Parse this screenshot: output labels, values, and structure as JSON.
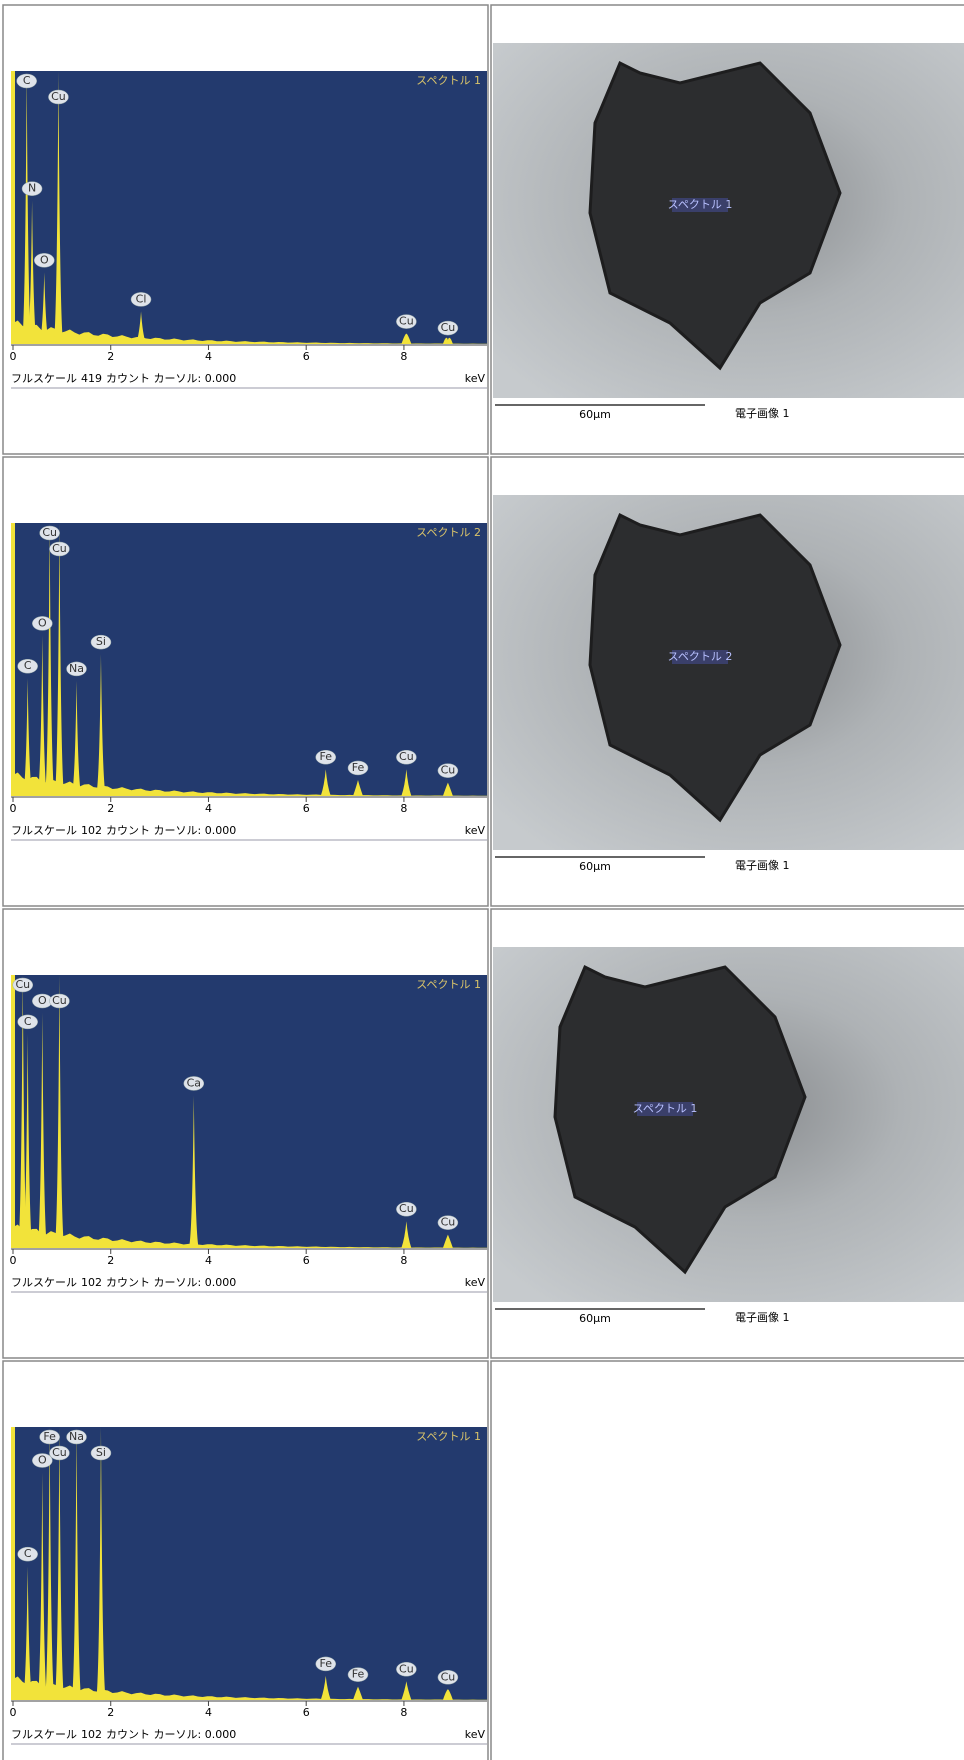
{
  "rows": [
    {
      "spectrum": {
        "tag": "スペクトル 1",
        "footer_prefix": "フルスケール",
        "full_scale": 419,
        "footer_suffix": "カウント カーソル: 0.000",
        "unit": "keV",
        "xlim": [
          0,
          9.7
        ],
        "xticks": [
          0,
          2,
          4,
          6,
          8
        ],
        "peaks": [
          {
            "label": "C",
            "x": 0.28,
            "y": 419
          },
          {
            "label": "N",
            "x": 0.39,
            "y": 220
          },
          {
            "label": "O",
            "x": 0.64,
            "y": 110
          },
          {
            "label": "Cu",
            "x": 0.93,
            "y": 419
          },
          {
            "label": "Cl",
            "x": 2.62,
            "y": 50
          },
          {
            "label": "Cu",
            "x": 8.05,
            "y": 16
          },
          {
            "label": "Cu",
            "x": 8.9,
            "y": 6
          }
        ]
      },
      "image": {
        "tag": "スペクトル 1",
        "scale": "60μm",
        "caption": "電子画像 1"
      }
    },
    {
      "spectrum": {
        "tag": "スペクトル 2",
        "footer_prefix": "フルスケール",
        "full_scale": 102,
        "footer_suffix": "カウント カーソル: 0.000",
        "unit": "keV",
        "xlim": [
          0,
          9.7
        ],
        "xticks": [
          0,
          2,
          4,
          6,
          8
        ],
        "peaks": [
          {
            "label": "C",
            "x": 0.3,
            "y": 44
          },
          {
            "label": "O",
            "x": 0.6,
            "y": 60
          },
          {
            "label": "Cu",
            "x": 0.75,
            "y": 102
          },
          {
            "label": "Cu",
            "x": 0.95,
            "y": 102
          },
          {
            "label": "Na",
            "x": 1.3,
            "y": 43
          },
          {
            "label": "Si",
            "x": 1.8,
            "y": 53
          },
          {
            "label": "Fe",
            "x": 6.4,
            "y": 10
          },
          {
            "label": "Fe",
            "x": 7.06,
            "y": 6
          },
          {
            "label": "Cu",
            "x": 8.05,
            "y": 10
          },
          {
            "label": "Cu",
            "x": 8.9,
            "y": 5
          }
        ]
      },
      "image": {
        "tag": "スペクトル 2",
        "scale": "60μm",
        "caption": "電子画像 1"
      }
    },
    {
      "spectrum": {
        "tag": "スペクトル 1",
        "footer_prefix": "フルスケール",
        "full_scale": 102,
        "footer_suffix": "カウント カーソル: 0.000",
        "unit": "keV",
        "xlim": [
          0,
          9.7
        ],
        "xticks": [
          0,
          2,
          4,
          6,
          8
        ],
        "peaks": [
          {
            "label": "C",
            "x": 0.3,
            "y": 80
          },
          {
            "label": "O",
            "x": 0.6,
            "y": 88
          },
          {
            "label": "Cu",
            "x": 0.2,
            "y": 102
          },
          {
            "label": "Cu",
            "x": 0.95,
            "y": 102
          },
          {
            "label": "Ca",
            "x": 3.7,
            "y": 57
          },
          {
            "label": "Cu",
            "x": 8.05,
            "y": 10
          },
          {
            "label": "Cu",
            "x": 8.9,
            "y": 5
          }
        ]
      },
      "image": {
        "tag": "スペクトル 1",
        "scale": "60μm",
        "caption": "電子画像 1"
      }
    },
    {
      "spectrum": {
        "tag": "スペクトル 1",
        "footer_prefix": "フルスケール",
        "full_scale": 102,
        "footer_suffix": "カウント カーソル: 0.000",
        "unit": "keV",
        "xlim": [
          0,
          9.7
        ],
        "xticks": [
          0,
          2,
          4,
          6,
          8
        ],
        "peaks": [
          {
            "label": "C",
            "x": 0.3,
            "y": 50
          },
          {
            "label": "O",
            "x": 0.6,
            "y": 85
          },
          {
            "label": "Fe",
            "x": 0.75,
            "y": 102
          },
          {
            "label": "Cu",
            "x": 0.95,
            "y": 102
          },
          {
            "label": "Na",
            "x": 1.3,
            "y": 102
          },
          {
            "label": "Si",
            "x": 1.8,
            "y": 102
          },
          {
            "label": "Fe",
            "x": 6.4,
            "y": 9
          },
          {
            "label": "Fe",
            "x": 7.06,
            "y": 5
          },
          {
            "label": "Cu",
            "x": 8.05,
            "y": 7
          },
          {
            "label": "Cu",
            "x": 8.9,
            "y": 4
          }
        ]
      },
      "image": null
    }
  ]
}
